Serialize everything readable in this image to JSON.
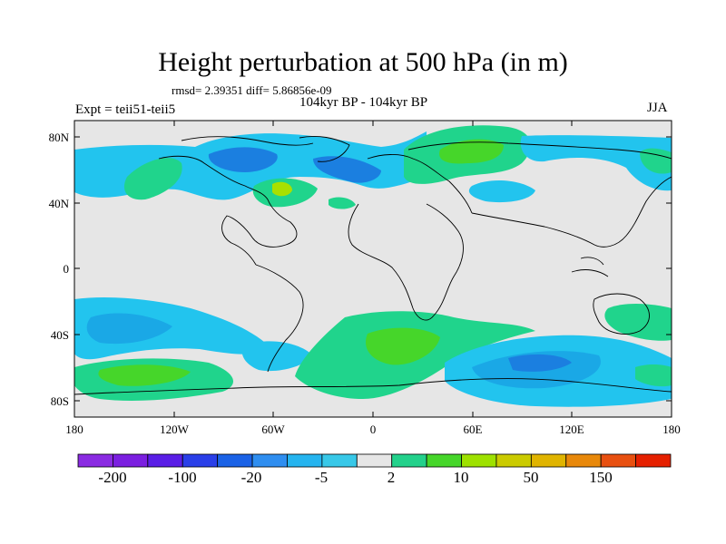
{
  "title": "Height perturbation at 500 hPa (in m)",
  "stats": "rmsd= 2.39351 diff= 5.86856e-09",
  "period": "104kyr BP - 104kyr BP",
  "experiment": "Expt = teii51-teii5",
  "season": "JJA",
  "lat_labels": [
    "80N",
    "40N",
    "0",
    "40S",
    "80S"
  ],
  "lon_labels": [
    "180",
    "120W",
    "60W",
    "0",
    "60E",
    "120E",
    "180"
  ],
  "colorbar": {
    "colors": [
      "#8a2be2",
      "#7b1fe0",
      "#5a1ee6",
      "#2a3fe8",
      "#1b62e6",
      "#2f8ef0",
      "#25b4ef",
      "#38c8e8",
      "#e6e6e6",
      "#23d18b",
      "#46d62a",
      "#9ee100",
      "#cbcb00",
      "#e0b400",
      "#e8880a",
      "#e85010",
      "#e52000"
    ],
    "labels": [
      "-200",
      "-100",
      "-20",
      "-5",
      "2",
      "10",
      "50",
      "150"
    ]
  },
  "map_colors": {
    "ocean": "#e6e6e6",
    "blue_light": "#22c4ee",
    "blue_mid": "#1aa8e6",
    "blue_dark": "#1b7fe0",
    "green": "#20d48c",
    "green_bright": "#46d62a",
    "yellow_green": "#a8e000"
  }
}
